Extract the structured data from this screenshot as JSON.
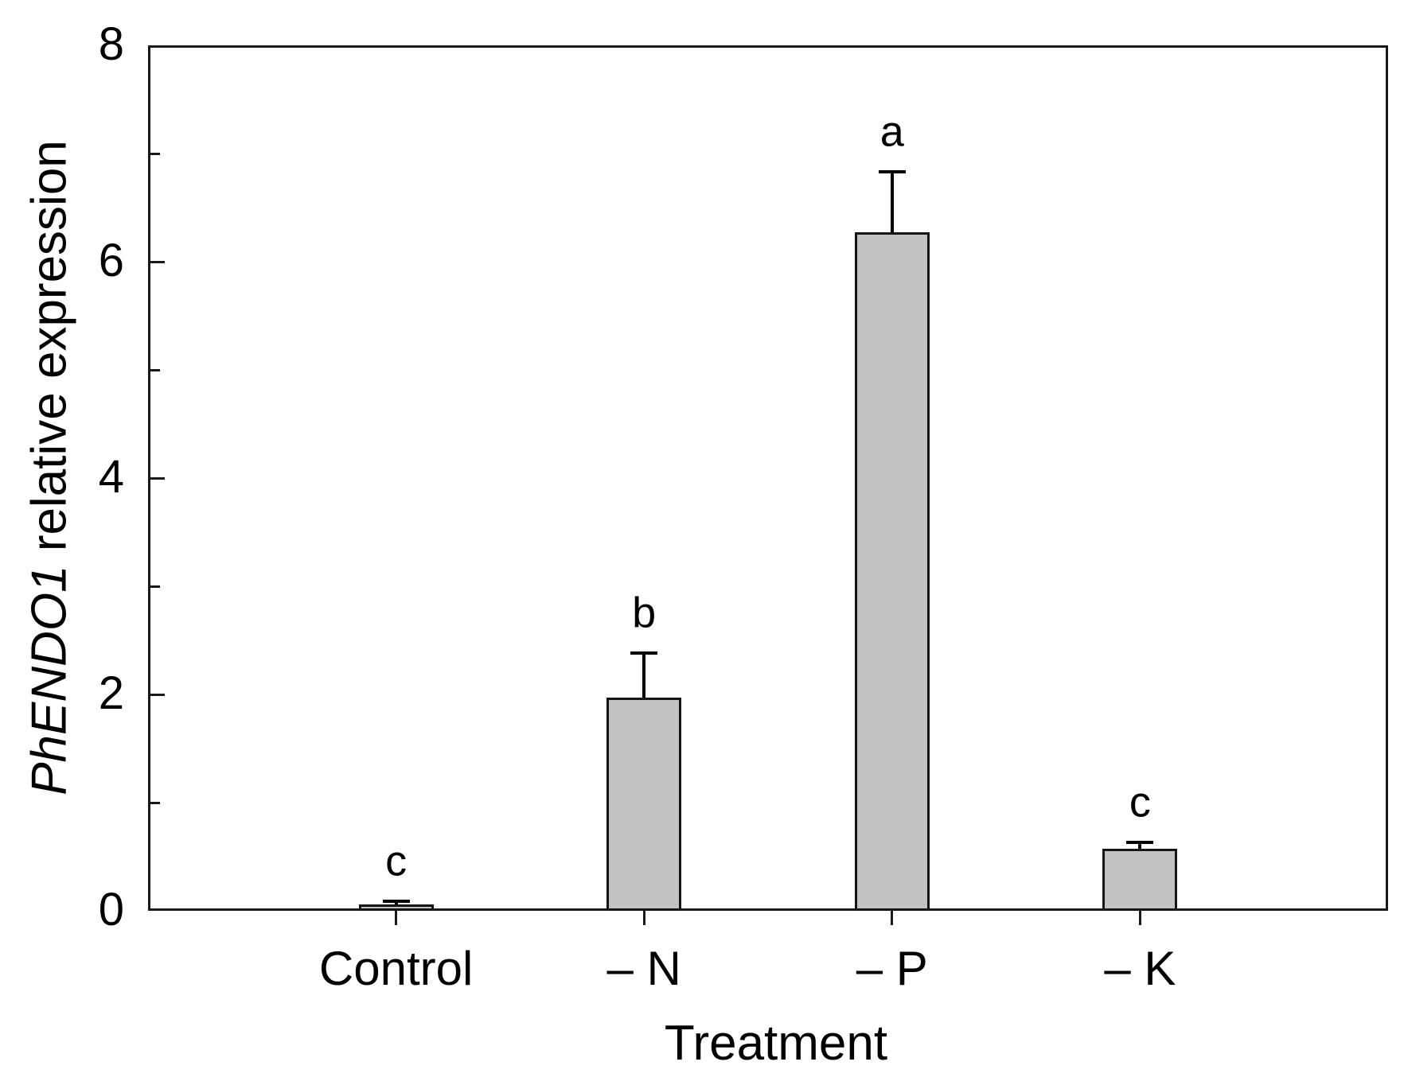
{
  "figure": {
    "background": "#ffffff"
  },
  "chart_data": {
    "type": "bar",
    "title": "",
    "xlabel": "Treatment",
    "ylabel_italic": "PhENDO1",
    "ylabel_rest": " relative expression",
    "categories": [
      "Control",
      "– N",
      "– P",
      "– K"
    ],
    "values": [
      0.06,
      1.97,
      6.27,
      0.57
    ],
    "errors": [
      0.03,
      0.41,
      0.56,
      0.06
    ],
    "error_direction": "upper-only",
    "sig_letters": [
      "c",
      "b",
      "a",
      "c"
    ],
    "ylim": [
      0,
      8
    ],
    "ytick_major_labeled": [
      0,
      2,
      4,
      6,
      8
    ],
    "ytick_major_marks": [
      2,
      4,
      6
    ],
    "ytick_minor_marks": [
      1,
      3,
      5,
      7
    ],
    "grid": "off",
    "legend": "none",
    "bar_fill": "#c2c2c2",
    "bar_border": "#151515",
    "axis_color": "#1a1a1a",
    "text_color": "#000000"
  }
}
